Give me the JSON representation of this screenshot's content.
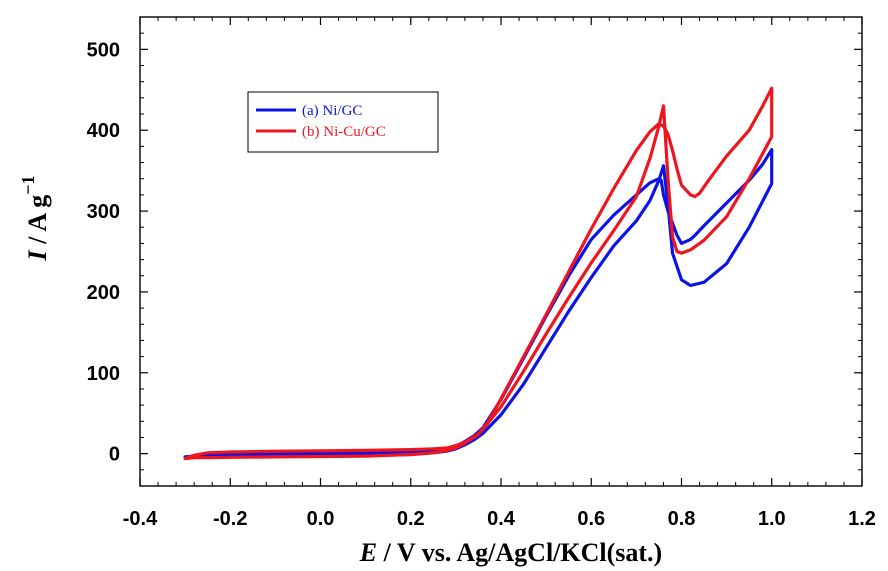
{
  "chart_data": {
    "type": "line",
    "title": "",
    "xlabel": {
      "symbol": "E",
      "rest": " / V vs. Ag/AgCl/KCl(sat.)"
    },
    "ylabel": {
      "symbol": "I",
      "rest": " / A g",
      "sup": "−1"
    },
    "xlim": [
      -0.4,
      1.2
    ],
    "ylim": [
      -40,
      540
    ],
    "xticks": [
      -0.4,
      -0.2,
      0.0,
      0.2,
      0.4,
      0.6,
      0.8,
      1.0,
      1.2
    ],
    "xtick_labels": [
      "-0.4",
      "-0.2",
      "0.0",
      "0.2",
      "0.4",
      "0.6",
      "0.8",
      "1.0",
      "1.2"
    ],
    "yticks": [
      0,
      100,
      200,
      300,
      400,
      500
    ],
    "ytick_labels": [
      "0",
      "100",
      "200",
      "300",
      "400",
      "500"
    ],
    "grid": false,
    "legend_position": "upper-left",
    "series": [
      {
        "name": "(a) Ni/GC",
        "color": "#0a14e6",
        "x": [
          -0.3,
          -0.28,
          -0.25,
          -0.2,
          -0.1,
          0.0,
          0.1,
          0.2,
          0.25,
          0.28,
          0.3,
          0.32,
          0.34,
          0.36,
          0.4,
          0.45,
          0.5,
          0.55,
          0.6,
          0.65,
          0.7,
          0.73,
          0.75,
          0.76,
          0.77,
          0.78,
          0.8,
          0.82,
          0.85,
          0.9,
          0.95,
          1.0,
          1.0,
          0.98,
          0.95,
          0.9,
          0.85,
          0.83,
          0.82,
          0.8,
          0.79,
          0.78,
          0.77,
          0.76,
          0.755,
          0.75,
          0.73,
          0.7,
          0.65,
          0.6,
          0.55,
          0.5,
          0.45,
          0.4,
          0.36,
          0.34,
          0.32,
          0.3,
          0.28,
          0.25,
          0.2,
          0.1,
          0.0,
          -0.1,
          -0.2,
          -0.25,
          -0.28,
          -0.3
        ],
        "y": [
          -5,
          -4,
          -4,
          -4,
          -3.5,
          -3,
          -2.5,
          -1,
          1,
          3,
          6,
          11,
          17,
          25,
          48,
          86,
          131,
          176,
          218,
          257,
          288,
          313,
          338,
          356,
          308,
          248,
          215,
          208,
          212,
          235,
          280,
          334,
          376,
          358,
          338,
          310,
          282,
          270,
          265,
          260,
          270,
          285,
          300,
          320,
          338,
          340,
          335,
          320,
          295,
          265,
          220,
          170,
          118,
          67,
          32,
          22,
          15,
          9,
          5,
          3,
          2,
          1,
          0.5,
          0,
          -1,
          -2,
          -3,
          -4
        ]
      },
      {
        "name": "(b) Ni-Cu/GC",
        "color": "#f0141e",
        "x": [
          -0.3,
          -0.28,
          -0.25,
          -0.2,
          -0.1,
          0.0,
          0.1,
          0.2,
          0.25,
          0.28,
          0.3,
          0.32,
          0.34,
          0.36,
          0.4,
          0.45,
          0.5,
          0.55,
          0.6,
          0.65,
          0.7,
          0.73,
          0.75,
          0.76,
          0.77,
          0.78,
          0.79,
          0.8,
          0.82,
          0.85,
          0.9,
          0.95,
          1.0,
          1.0,
          0.98,
          0.95,
          0.9,
          0.86,
          0.84,
          0.83,
          0.82,
          0.8,
          0.79,
          0.78,
          0.77,
          0.76,
          0.75,
          0.73,
          0.7,
          0.65,
          0.6,
          0.55,
          0.5,
          0.45,
          0.4,
          0.37,
          0.35,
          0.32,
          0.3,
          0.28,
          0.25,
          0.2,
          0.1,
          0.0,
          -0.1,
          -0.2,
          -0.25,
          -0.28,
          -0.3
        ],
        "y": [
          -6,
          -5,
          -5,
          -4.5,
          -4,
          -3.5,
          -3,
          -1,
          1,
          4,
          7,
          13,
          20,
          30,
          58,
          102,
          148,
          193,
          236,
          276,
          318,
          365,
          405,
          430,
          340,
          268,
          250,
          248,
          252,
          264,
          293,
          340,
          392,
          452,
          430,
          400,
          368,
          338,
          322,
          318,
          320,
          332,
          352,
          375,
          395,
          405,
          408,
          398,
          375,
          328,
          278,
          225,
          172,
          120,
          68,
          38,
          24,
          14,
          10,
          7,
          6,
          5,
          4,
          3.5,
          3,
          2,
          1,
          -2,
          -6
        ]
      }
    ]
  }
}
